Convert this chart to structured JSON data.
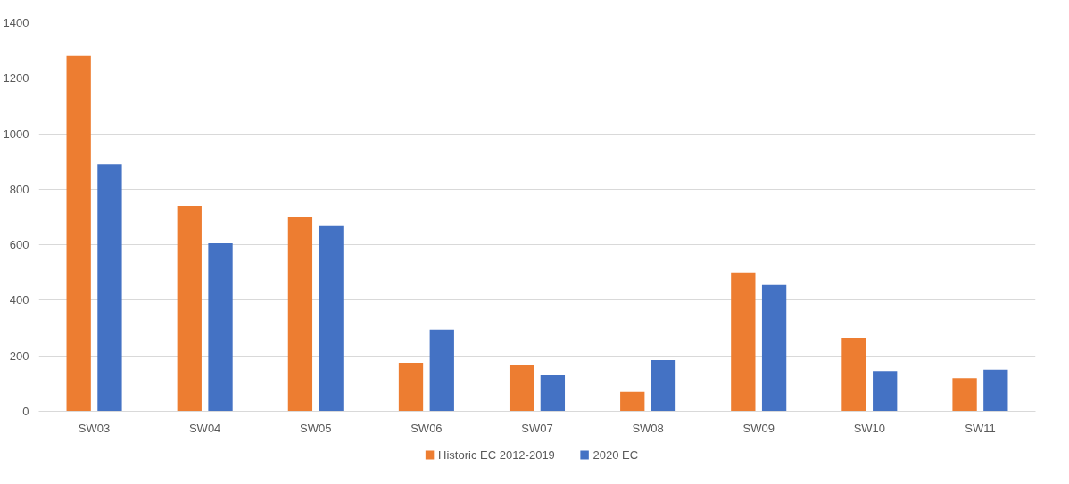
{
  "chart_data": {
    "type": "bar",
    "categories": [
      "SW03",
      "SW04",
      "SW05",
      "SW06",
      "SW07",
      "SW08",
      "SW09",
      "SW10",
      "SW11"
    ],
    "series": [
      {
        "name": "Historic EC 2012-2019",
        "color": "#ed7d31",
        "values": [
          1280,
          740,
          700,
          175,
          165,
          70,
          500,
          265,
          120
        ]
      },
      {
        "name": "2020 EC",
        "color": "#4472c4",
        "values": [
          890,
          605,
          670,
          295,
          130,
          185,
          455,
          145,
          150
        ]
      }
    ],
    "ylim": [
      0,
      1400
    ],
    "yticks": [
      0,
      200,
      400,
      600,
      800,
      1000,
      1200,
      1400
    ],
    "grid": "y",
    "legend": "bottom"
  }
}
